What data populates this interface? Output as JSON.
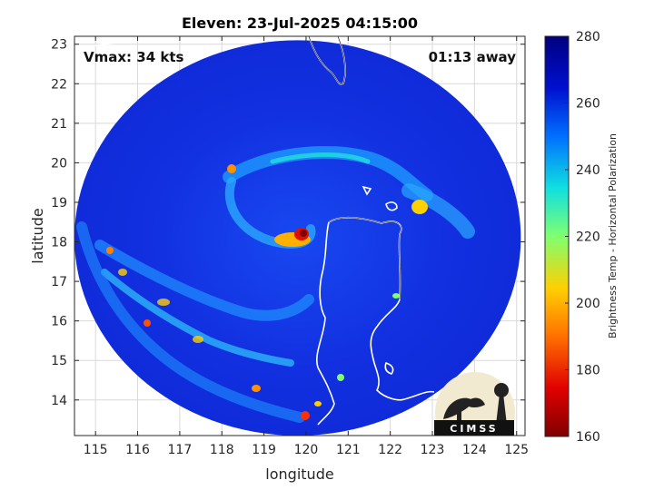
{
  "chart_data": {
    "type": "heatmap",
    "title": "Eleven: 23-Jul-2025 04:15:00",
    "xlabel": "longitude",
    "ylabel": "latitude",
    "xlim": [
      114.5,
      125.2
    ],
    "ylim": [
      13.1,
      23.2
    ],
    "xticks": [
      "115",
      "116",
      "117",
      "118",
      "119",
      "120",
      "121",
      "122",
      "123",
      "124",
      "125"
    ],
    "yticks": [
      "14",
      "15",
      "16",
      "17",
      "18",
      "19",
      "20",
      "21",
      "22",
      "23"
    ],
    "grid": true,
    "annotations": {
      "vmax": "Vmax: 34 kts",
      "timing": "01:13 away"
    },
    "colorbar": {
      "label": "Brightness Temp - Horizontal Polarization",
      "range": [
        160,
        280
      ],
      "ticks": [
        "280",
        "260",
        "240",
        "220",
        "200",
        "180",
        "160"
      ]
    },
    "swath": {
      "center_lon": 119.8,
      "center_lat": 18.1,
      "radius_lon": 5.3,
      "radius_lat": 5.0
    },
    "storm_center": {
      "lon": 119.8,
      "lat": 18.05
    },
    "coast_color": "#ffffff",
    "logo": "CIMSS"
  }
}
